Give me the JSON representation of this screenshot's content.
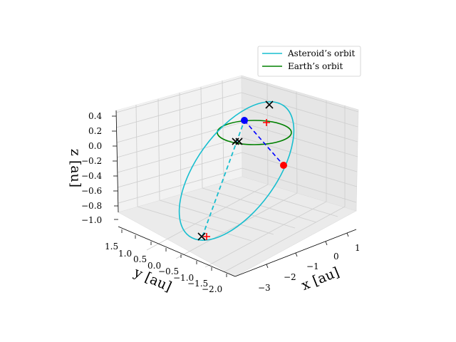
{
  "chart_data": {
    "type": "line",
    "projection": "3d",
    "axes": {
      "x": {
        "label": "x [au]",
        "ticks": [
          "−3",
          "−2",
          "−1",
          "0",
          "1"
        ]
      },
      "y": {
        "label": "y [au]",
        "ticks": [
          "1.5",
          "1.0",
          "0.5",
          "0.0",
          "−0.5",
          "−1.0",
          "−1.5",
          "−2.0"
        ]
      },
      "z": {
        "label": "z [au]",
        "ticks": [
          "0.4",
          "0.2",
          "0.0",
          "−0.2",
          "−0.4",
          "−0.6",
          "−0.8",
          "−1.0"
        ]
      }
    },
    "grid": true,
    "legend": {
      "position": "top-right",
      "entries": [
        {
          "name": "Asteroid’s orbit",
          "color": "#17becf"
        },
        {
          "name": "Earth’s orbit",
          "color": "#008000"
        }
      ]
    },
    "series": [
      {
        "name": "Asteroid’s orbit",
        "color": "#17becf",
        "style": "ellipse, dashed behind view"
      },
      {
        "name": "Earth’s orbit",
        "color": "#008000",
        "style": "ellipse"
      }
    ],
    "markers": [
      {
        "type": "point",
        "color": "#0000ff"
      },
      {
        "type": "point",
        "color": "#ff0000"
      },
      {
        "type": "cross",
        "color": "#000000"
      },
      {
        "type": "plus",
        "color": "#ff0000"
      },
      {
        "type": "dashed-line",
        "color": "#0000ff"
      }
    ]
  }
}
